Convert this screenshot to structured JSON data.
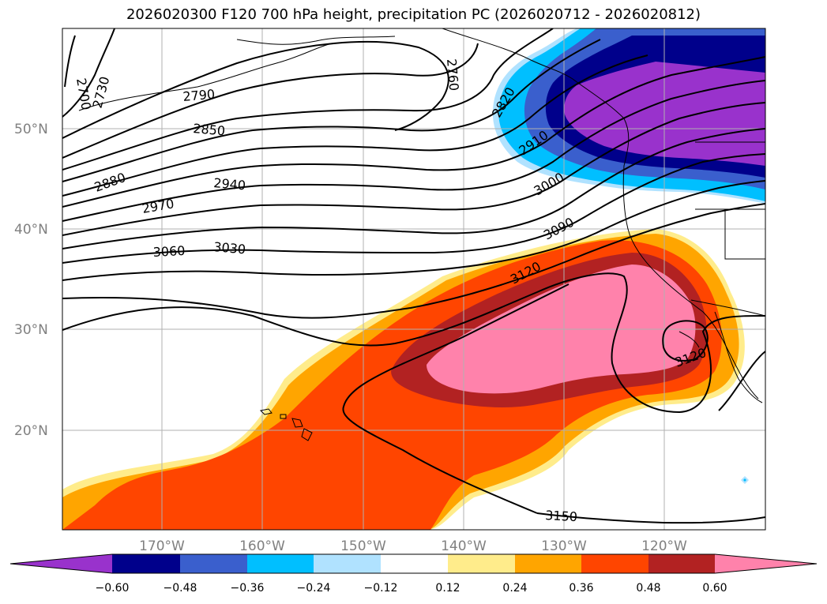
{
  "title": "2026020300 F120 700 hPa height, precipitation PC (2026020712 - 2026020812)",
  "map": {
    "lat_labels": [
      "50°N",
      "40°N",
      "30°N",
      "20°N"
    ],
    "lon_labels": [
      "170°W",
      "160°W",
      "150°W",
      "140°W",
      "130°W",
      "120°W"
    ],
    "contour_labels": [
      "2700",
      "2730",
      "2760",
      "2790",
      "2820",
      "2850",
      "2880",
      "2910",
      "2940",
      "2970",
      "3000",
      "3030",
      "3060",
      "3090",
      "3120",
      "3120",
      "3150"
    ]
  },
  "colorbar": {
    "colors": [
      "#9932CC",
      "#00008B",
      "#3A5FCD",
      "#00BFFF",
      "#B0E2FF",
      "#FFFFFF",
      "#FFEC8B",
      "#FFA500",
      "#FF4500",
      "#B22222",
      "#FF82AB"
    ],
    "tick_labels": [
      "−0.60",
      "−0.48",
      "−0.36",
      "−0.24",
      "−0.12",
      "0.12",
      "0.24",
      "0.36",
      "0.48",
      "0.60"
    ]
  }
}
